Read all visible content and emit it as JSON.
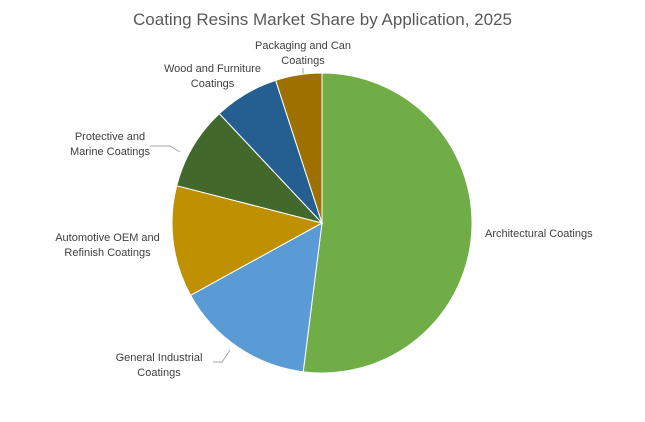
{
  "chart_data": {
    "type": "pie",
    "title": "Coating Resins Market Share by Application, 2025",
    "categories": [
      "Architectural Coatings",
      "General Industrial Coatings",
      "Automotive OEM and Refinish Coatings",
      "Protective and Marine Coatings",
      "Wood and Furniture Coatings",
      "Packaging and Can Coatings"
    ],
    "values": [
      52,
      15,
      12,
      9,
      7,
      5
    ],
    "colors": [
      "#70ad47",
      "#5b9bd5",
      "#bf9000",
      "#43682b",
      "#255e91",
      "#9e7000"
    ]
  }
}
